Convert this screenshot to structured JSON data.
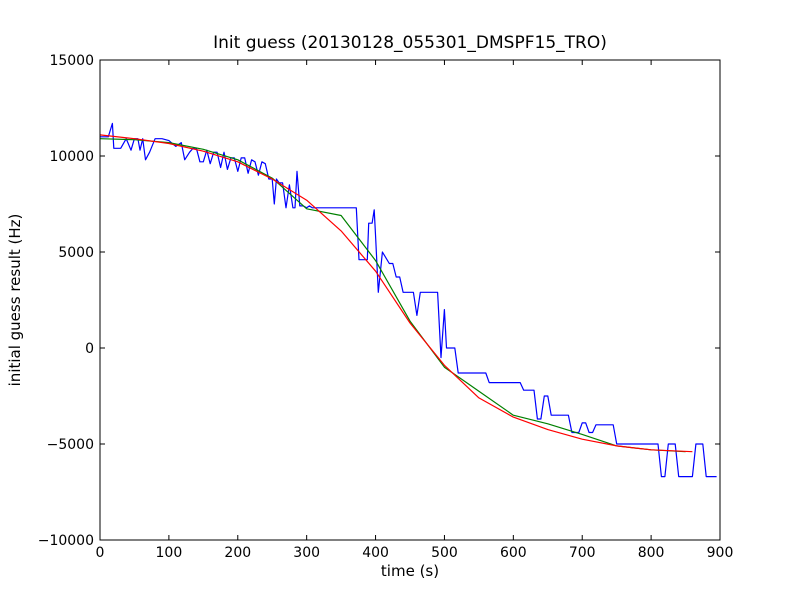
{
  "chart_data": {
    "type": "line",
    "title": "Init guess (20130128_055301_DMSPF15_TRO)",
    "xlabel": "time (s)",
    "ylabel": "initial guess result (Hz)",
    "xlim": [
      0,
      900
    ],
    "ylim": [
      -10000,
      15000
    ],
    "xticks": [
      0,
      100,
      200,
      300,
      400,
      500,
      600,
      700,
      800,
      900
    ],
    "yticks": [
      -10000,
      -5000,
      0,
      5000,
      10000,
      15000
    ],
    "xtick_labels": [
      "0",
      "100",
      "200",
      "300",
      "400",
      "500",
      "600",
      "700",
      "800",
      "900"
    ],
    "ytick_labels": [
      "−10000",
      "−5000",
      "0",
      "5000",
      "10000",
      "15000"
    ],
    "grid": false,
    "legend": "none",
    "series": [
      {
        "color": "#0000ff",
        "x": [
          0,
          12,
          18,
          20,
          22,
          30,
          38,
          45,
          50,
          55,
          58,
          62,
          66,
          72,
          80,
          90,
          100,
          110,
          118,
          123,
          130,
          135,
          140,
          145,
          150,
          155,
          160,
          165,
          170,
          175,
          180,
          185,
          190,
          195,
          200,
          205,
          210,
          215,
          220,
          225,
          230,
          235,
          240,
          245,
          250,
          253,
          256,
          260,
          265,
          270,
          275,
          280,
          283,
          286,
          290,
          295,
          300,
          304,
          308,
          312,
          316,
          320,
          330,
          340,
          345,
          350,
          355,
          360,
          365,
          368,
          372,
          376,
          380,
          384,
          388,
          390,
          395,
          398,
          400,
          404,
          410,
          420,
          425,
          430,
          435,
          440,
          445,
          450,
          455,
          460,
          465,
          470,
          475,
          480,
          485,
          490,
          495,
          500,
          503,
          506,
          510,
          515,
          520,
          525,
          530,
          535,
          540,
          545,
          550,
          555,
          560,
          565,
          570,
          575,
          580,
          585,
          590,
          595,
          600,
          605,
          610,
          615,
          620,
          625,
          630,
          635,
          640,
          645,
          650,
          655,
          660,
          665,
          670,
          675,
          680,
          685,
          690,
          695,
          700,
          705,
          710,
          715,
          720,
          725,
          730,
          735,
          740,
          745,
          750,
          755,
          760,
          765,
          770,
          775,
          780,
          785,
          790,
          795,
          800,
          805,
          810,
          815,
          820,
          825,
          830,
          835,
          840,
          845,
          850,
          855,
          860,
          865,
          870,
          875,
          880,
          885,
          890,
          895
        ],
        "y": [
          11000,
          11000,
          11700,
          10400,
          10400,
          10400,
          10900,
          10300,
          10900,
          10900,
          10300,
          10900,
          9800,
          10200,
          10900,
          10900,
          10800,
          10500,
          10700,
          9800,
          10200,
          10400,
          10400,
          9700,
          9700,
          10300,
          9600,
          10200,
          10200,
          9400,
          10200,
          9300,
          9900,
          9900,
          9200,
          9900,
          9900,
          9100,
          9800,
          9700,
          9000,
          9700,
          9600,
          8800,
          8800,
          7500,
          8800,
          8600,
          8600,
          7300,
          8500,
          7300,
          7300,
          9200,
          7400,
          7400,
          7300,
          7400,
          7300,
          7300,
          7300,
          7300,
          7300,
          7300,
          7300,
          7300,
          7300,
          7300,
          7300,
          7300,
          7300,
          4600,
          4600,
          4600,
          4600,
          6500,
          6500,
          7200,
          5800,
          2900,
          5000,
          4400,
          4400,
          3700,
          3700,
          2900,
          2900,
          2900,
          2900,
          1700,
          2900,
          2900,
          2900,
          2900,
          2900,
          2900,
          -500,
          2000,
          0,
          0,
          0,
          0,
          -1300,
          -1300,
          -1300,
          -1300,
          -1300,
          -1300,
          -1300,
          -1300,
          -1300,
          -1800,
          -1800,
          -1800,
          -1800,
          -1800,
          -1800,
          -1800,
          -1800,
          -1800,
          -1800,
          -2200,
          -2200,
          -2200,
          -2200,
          -3700,
          -3700,
          -2500,
          -2500,
          -3500,
          -3500,
          -3500,
          -3500,
          -3500,
          -3500,
          -4400,
          -4400,
          -4400,
          -3900,
          -3900,
          -4400,
          -4400,
          -4000,
          -4000,
          -4000,
          -4000,
          -4000,
          -4000,
          -5000,
          -5000,
          -5000,
          -5000,
          -5000,
          -5000,
          -5000,
          -5000,
          -5000,
          -5000,
          -5000,
          -5000,
          -5000,
          -6700,
          -6700,
          -5000,
          -5000,
          -5000,
          -6700,
          -6700,
          -6700,
          -6700,
          -6700,
          -5000,
          -5000,
          -5000,
          -6700,
          -6700,
          -6700,
          -6700
        ]
      },
      {
        "color": "#008000",
        "x": [
          0,
          50,
          100,
          150,
          200,
          250,
          300,
          350,
          400,
          450,
          500,
          550,
          600,
          650,
          700,
          750,
          800,
          850
        ],
        "y": [
          10900,
          10850,
          10700,
          10350,
          9800,
          8850,
          7250,
          6900,
          4550,
          1400,
          -1000,
          -2250,
          -3500,
          -3950,
          -4500,
          -5100,
          -5300,
          -5400
        ]
      },
      {
        "color": "#ff0000",
        "x": [
          0,
          50,
          100,
          150,
          200,
          250,
          300,
          350,
          400,
          450,
          500,
          550,
          600,
          650,
          700,
          750,
          800,
          860
        ],
        "y": [
          11100,
          10900,
          10650,
          10250,
          9700,
          8800,
          7700,
          6100,
          4000,
          1300,
          -900,
          -2600,
          -3600,
          -4250,
          -4750,
          -5100,
          -5300,
          -5400
        ]
      }
    ]
  }
}
